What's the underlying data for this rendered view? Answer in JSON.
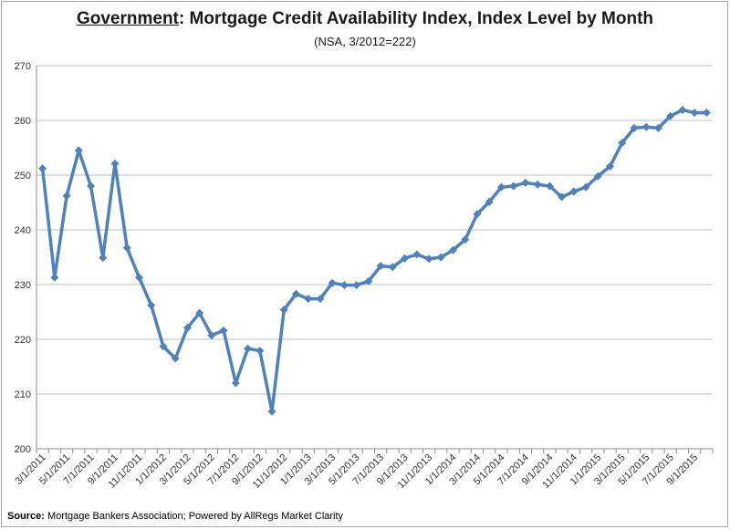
{
  "title_prefix": "Government",
  "title_suffix": ": Mortgage Credit Availability Index, Index Level by Month",
  "subtitle": "(NSA, 3/2012=222)",
  "source_label": "Source:",
  "source_text": " Mortgage Bankers Association; Powered by AllRegs Market Clarity",
  "line_color": "#4f81bd",
  "chart_data": {
    "type": "line",
    "title": "Government: Mortgage Credit Availability Index, Index Level by Month",
    "subtitle": "(NSA, 3/2012=222)",
    "ylim": [
      200,
      270
    ],
    "yticks": [
      200,
      210,
      220,
      230,
      240,
      250,
      260,
      270
    ],
    "grid": true,
    "x_tick_labels": [
      "3/1/2011",
      "5/1/2011",
      "7/1/2011",
      "9/1/2011",
      "11/1/2011",
      "1/1/2012",
      "3/1/2012",
      "5/1/2012",
      "7/1/2012",
      "9/1/2012",
      "11/1/2012",
      "1/1/2013",
      "3/1/2013",
      "5/1/2013",
      "7/1/2013",
      "9/1/2013",
      "11/1/2013",
      "1/1/2014",
      "3/1/2014",
      "5/1/2014",
      "7/1/2014",
      "9/1/2014",
      "11/1/2014",
      "1/1/2015",
      "3/1/2015",
      "5/1/2015",
      "7/1/2015",
      "9/1/2015"
    ],
    "x": [
      "3/1/2011",
      "4/1/2011",
      "5/1/2011",
      "6/1/2011",
      "7/1/2011",
      "8/1/2011",
      "9/1/2011",
      "10/1/2011",
      "11/1/2011",
      "12/1/2011",
      "1/1/2012",
      "2/1/2012",
      "3/1/2012",
      "4/1/2012",
      "5/1/2012",
      "6/1/2012",
      "7/1/2012",
      "8/1/2012",
      "9/1/2012",
      "10/1/2012",
      "11/1/2012",
      "12/1/2012",
      "1/1/2013",
      "2/1/2013",
      "3/1/2013",
      "4/1/2013",
      "5/1/2013",
      "6/1/2013",
      "7/1/2013",
      "8/1/2013",
      "9/1/2013",
      "10/1/2013",
      "11/1/2013",
      "12/1/2013",
      "1/1/2014",
      "2/1/2014",
      "3/1/2014",
      "4/1/2014",
      "5/1/2014",
      "6/1/2014",
      "7/1/2014",
      "8/1/2014",
      "9/1/2014",
      "10/1/2014",
      "11/1/2014",
      "12/1/2014",
      "1/1/2015",
      "2/1/2015",
      "3/1/2015",
      "4/1/2015",
      "5/1/2015",
      "6/1/2015",
      "7/1/2015",
      "8/1/2015",
      "9/1/2015",
      "10/1/2015"
    ],
    "series": [
      {
        "values": [
          251.2,
          231.3,
          246.2,
          254.5,
          248.0,
          234.9,
          252.1,
          236.7,
          231.3,
          226.2,
          218.7,
          216.5,
          222.1,
          224.8,
          220.7,
          221.6,
          212.0,
          218.3,
          217.9,
          206.8,
          225.4,
          228.3,
          227.4,
          227.4,
          230.3,
          229.9,
          229.9,
          230.6,
          233.4,
          233.2,
          234.8,
          235.5,
          234.7,
          235.0,
          236.3,
          238.2,
          242.9,
          245.1,
          247.8,
          248.0,
          248.6,
          248.3,
          248.0,
          246.0,
          247.0,
          247.8,
          249.8,
          251.6,
          255.9,
          258.6,
          258.8,
          258.6,
          260.8,
          261.9,
          261.4,
          261.4
        ]
      }
    ]
  }
}
